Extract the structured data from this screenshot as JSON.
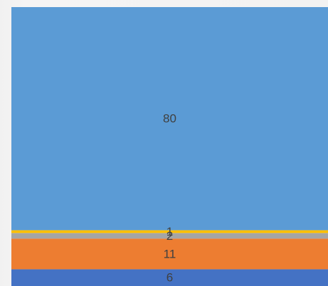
{
  "chart_data": {
    "type": "bar",
    "stacked": true,
    "orientation": "vertical",
    "categories": [
      ""
    ],
    "series": [
      {
        "values": [
          6
        ],
        "color": "#4472c4"
      },
      {
        "values": [
          11
        ],
        "color": "#ed7d31"
      },
      {
        "values": [
          2
        ],
        "color": "#a5a5a5"
      },
      {
        "values": [
          1
        ],
        "color": "#ffc000"
      },
      {
        "values": [
          80
        ],
        "color": "#5b9bd5"
      }
    ],
    "data_labels": [
      "6",
      "11",
      "2",
      "1",
      "80"
    ],
    "ylim": [
      0,
      100
    ],
    "grid": false,
    "legend": "none"
  }
}
